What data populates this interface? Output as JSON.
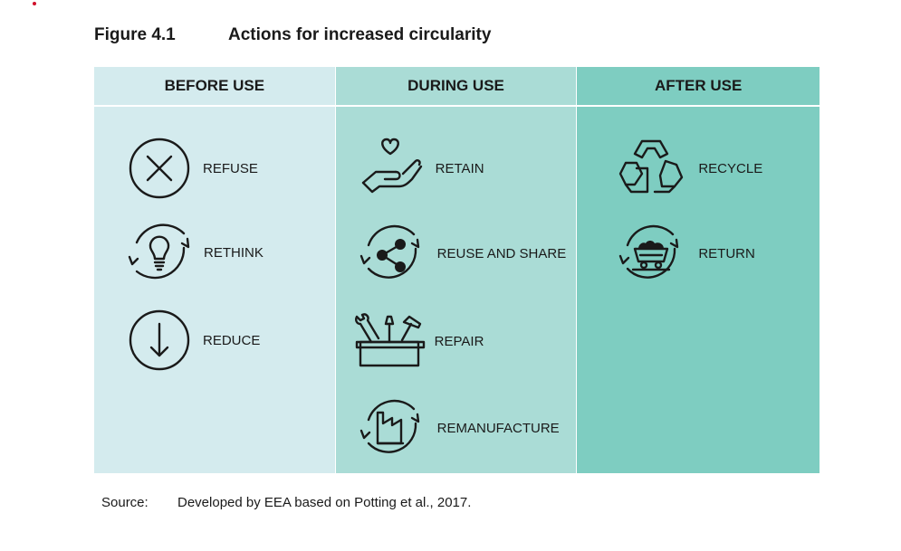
{
  "figure": {
    "number": "Figure 4.1",
    "title": "Actions for increased circularity"
  },
  "columns": [
    {
      "header": "BEFORE USE",
      "items": [
        {
          "label": "REFUSE",
          "icon": "x-circle-icon"
        },
        {
          "label": "RETHINK",
          "icon": "lightbulb-cycle-icon"
        },
        {
          "label": "REDUCE",
          "icon": "down-arrow-circle-icon"
        }
      ]
    },
    {
      "header": "DURING USE",
      "items": [
        {
          "label": "RETAIN",
          "icon": "hand-heart-icon"
        },
        {
          "label": "REUSE AND SHARE",
          "icon": "share-cycle-icon"
        },
        {
          "label": "REPAIR",
          "icon": "toolbox-icon"
        },
        {
          "label": "REMANUFACTURE",
          "icon": "factory-cycle-icon"
        }
      ]
    },
    {
      "header": "AFTER USE",
      "items": [
        {
          "label": "RECYCLE",
          "icon": "recycle-icon"
        },
        {
          "label": "RETURN",
          "icon": "mine-cart-cycle-icon"
        }
      ]
    }
  ],
  "source": {
    "label": "Source:",
    "text": "Developed by EEA based on Potting et al., 2017."
  },
  "colors": {
    "before_use": "#d4ebee",
    "during_use": "#aadcd6",
    "after_use": "#7ecdc1",
    "accent_dot": "#d0102a"
  }
}
